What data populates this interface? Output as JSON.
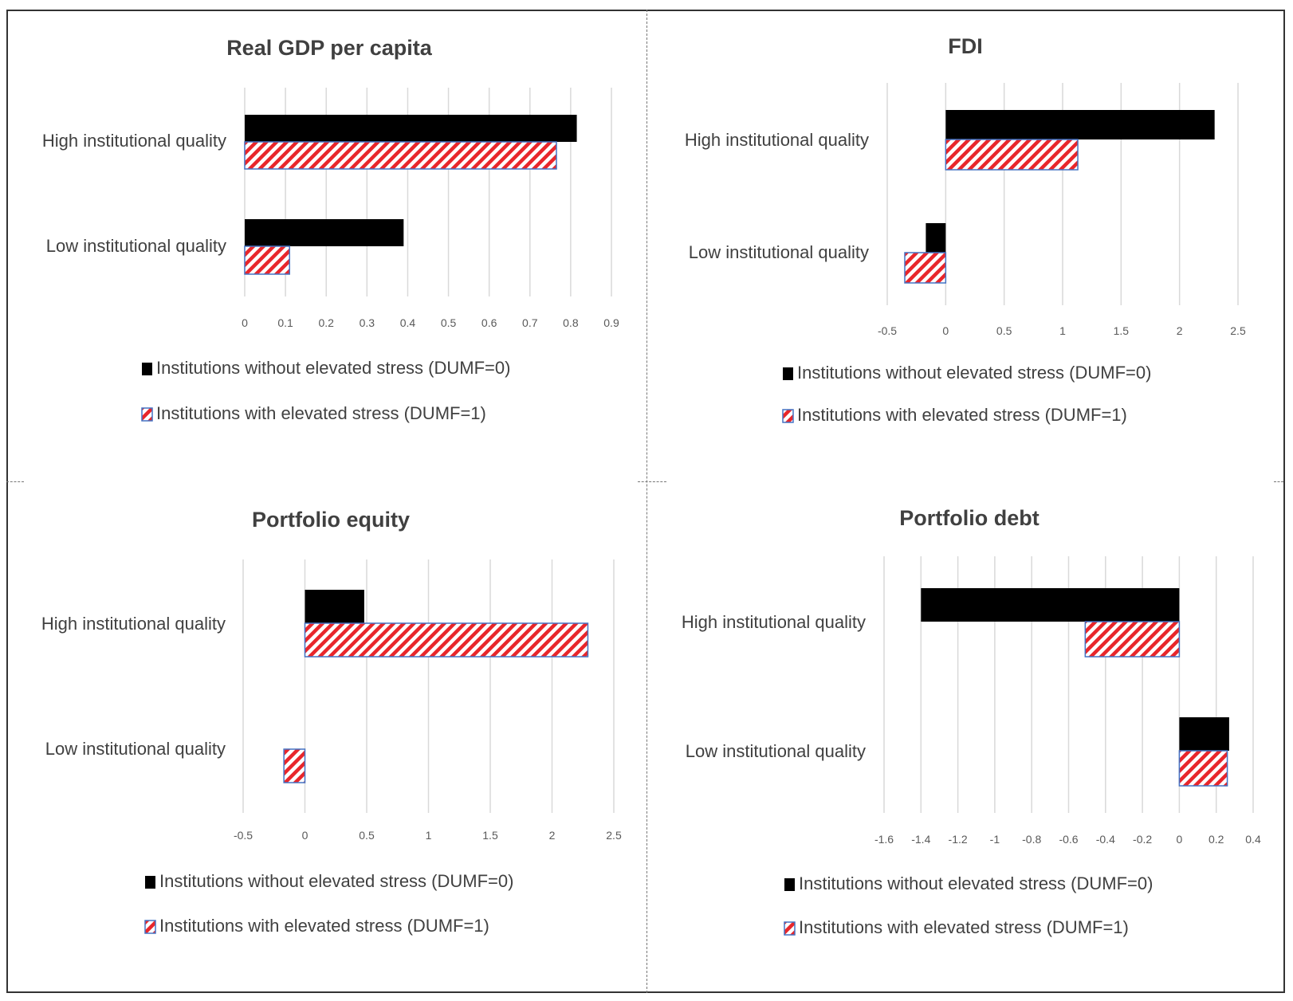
{
  "colors": {
    "series0_fill": "#000000",
    "series1_stripe": "#e8262b",
    "series1_border": "#4472c4",
    "grid": "#d9d9d9",
    "text": "#404040"
  },
  "chart_data": [
    {
      "type": "bar",
      "orientation": "horizontal",
      "title": "Real GDP per capita",
      "categories": [
        "High institutional quality",
        "Low institutional quality"
      ],
      "series": [
        {
          "name": "Institutions without elevated stress (DUMF=0)",
          "values": [
            0.815,
            0.39
          ]
        },
        {
          "name": "Institutions with elevated stress (DUMF=1)",
          "values": [
            0.765,
            0.11
          ]
        }
      ],
      "xlim": [
        0,
        0.9
      ],
      "xticks": [
        "0",
        "0.1",
        "0.2",
        "0.3",
        "0.4",
        "0.5",
        "0.6",
        "0.7",
        "0.8",
        "0.9"
      ],
      "grid": true,
      "legend_position": "bottom"
    },
    {
      "type": "bar",
      "orientation": "horizontal",
      "title": "FDI",
      "categories": [
        "High institutional quality",
        "Low institutional quality"
      ],
      "series": [
        {
          "name": "Institutions without elevated stress (DUMF=0)",
          "values": [
            2.3,
            -0.17
          ]
        },
        {
          "name": "Institutions with elevated stress (DUMF=1)",
          "values": [
            1.13,
            -0.35
          ]
        }
      ],
      "xlim": [
        -0.5,
        2.5
      ],
      "xticks": [
        "-0.5",
        "0",
        "0.5",
        "1",
        "1.5",
        "2",
        "2.5"
      ],
      "grid": true,
      "legend_position": "bottom"
    },
    {
      "type": "bar",
      "orientation": "horizontal",
      "title": "Portfolio equity",
      "categories": [
        "High institutional quality",
        "Low institutional quality"
      ],
      "series": [
        {
          "name": "Institutions without elevated stress (DUMF=0)",
          "values": [
            0.48,
            0
          ]
        },
        {
          "name": "Institutions with elevated stress (DUMF=1)",
          "values": [
            2.29,
            -0.17
          ]
        }
      ],
      "xlim": [
        -0.5,
        2.5
      ],
      "xticks": [
        "-0.5",
        "0",
        "0.5",
        "1",
        "1.5",
        "2",
        "2.5"
      ],
      "grid": true,
      "legend_position": "bottom"
    },
    {
      "type": "bar",
      "orientation": "horizontal",
      "title": "Portfolio debt",
      "categories": [
        "High institutional quality",
        "Low institutional quality"
      ],
      "series": [
        {
          "name": "Institutions without elevated stress (DUMF=0)",
          "values": [
            -1.4,
            0.27
          ]
        },
        {
          "name": "Institutions with elevated stress (DUMF=1)",
          "values": [
            -0.51,
            0.26
          ]
        }
      ],
      "xlim": [
        -1.6,
        0.4
      ],
      "xticks": [
        "-1.6",
        "-1.4",
        "-1.2",
        "-1",
        "-0.8",
        "-0.6",
        "-0.4",
        "-0.2",
        "0",
        "0.2",
        "0.4"
      ],
      "grid": true,
      "legend_position": "bottom"
    }
  ]
}
